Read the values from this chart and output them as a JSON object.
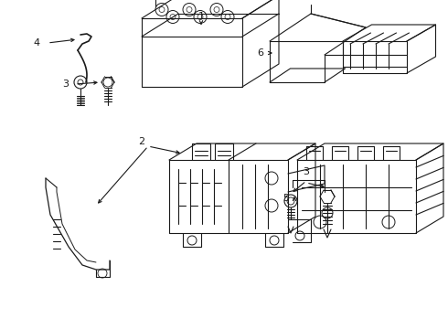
{
  "background_color": "#ffffff",
  "line_color": "#1a1a1a",
  "line_width": 0.8,
  "fig_width": 4.9,
  "fig_height": 3.6,
  "dpi": 100
}
